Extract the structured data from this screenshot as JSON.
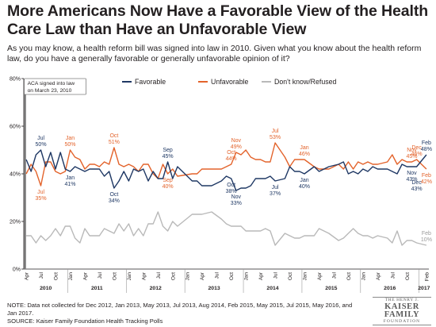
{
  "title": "More Americans Now Have a Favorable View of the Health Care Law than Have an Unfavorable View",
  "subtitle": "As you may know, a health reform bill was signed into law in 2010. Given what you know about the health reform law, do you have a generally favorable or generally unfavorable opinion of it?",
  "note": "NOTE: Data not collected for Dec 2012, Jan 2013, May 2013, Jul 2013, Aug 2014, Feb 2015, May 2015, Jul 2015, May 2016, and Jan 2017.",
  "source": "SOURCE: Kaiser Family Foundation Health Tracking Polls",
  "logo": {
    "line1": "THE HENRY J.",
    "line2a": "KAISER",
    "line2b": "FAMILY",
    "line3": "FOUNDATION"
  },
  "colors": {
    "favorable": "#1f3864",
    "unfavorable": "#e3632b",
    "dontknow": "#b9b9b9",
    "axis": "#231f20"
  },
  "chart_data": {
    "type": "line",
    "ylim": [
      0,
      80
    ],
    "yticks": [
      "0%",
      "20%",
      "40%",
      "60%",
      "80%"
    ],
    "start": "2010-04",
    "end": "2017-02",
    "months_visible_with_labels": [
      "Apr",
      "Jul",
      "Oct",
      "Jan",
      "Apr",
      "Jul",
      "Oct",
      "Jan",
      "Apr",
      "Jul",
      "Oct",
      "Jan",
      "Apr",
      "Jul",
      "Oct",
      "Jan",
      "Apr",
      "Jul",
      "Oct",
      "Jan",
      "Apr",
      "Jul",
      "Oct",
      "Jan",
      "Apr",
      "Jul",
      "Oct",
      "Feb"
    ],
    "month_label_dates": [
      "2010-04",
      "2010-07",
      "2010-10",
      "2011-01",
      "2011-04",
      "2011-07",
      "2011-10",
      "2012-01",
      "2012-04",
      "2012-07",
      "2012-10",
      "2013-01",
      "2013-04",
      "2013-07",
      "2013-10",
      "2014-01",
      "2014-04",
      "2014-07",
      "2014-10",
      "2015-01",
      "2015-04",
      "2015-07",
      "2015-10",
      "2016-01",
      "2016-04",
      "2016-07",
      "2016-10",
      "2017-02"
    ],
    "years": [
      "2010",
      "2011",
      "2012",
      "2013",
      "2014",
      "2015",
      "2016",
      "2017"
    ],
    "annotation": {
      "text1": "ACA signed into law",
      "text2": "on March 23, 2010"
    },
    "legend": {
      "favorable": "Favorable",
      "unfavorable": "Unfavorable",
      "dontknow": "Don't know/Refused"
    },
    "series": [
      {
        "key": "favorable",
        "name": "Favorable",
        "points": [
          [
            "2010-04",
            46
          ],
          [
            "2010-05",
            41
          ],
          [
            "2010-06",
            48
          ],
          [
            "2010-07",
            50
          ],
          [
            "2010-08",
            43
          ],
          [
            "2010-09",
            49
          ],
          [
            "2010-10",
            42
          ],
          [
            "2010-11",
            49
          ],
          [
            "2010-12",
            42
          ],
          [
            "2011-01",
            41
          ],
          [
            "2011-02",
            43
          ],
          [
            "2011-03",
            42
          ],
          [
            "2011-04",
            41
          ],
          [
            "2011-05",
            42
          ],
          [
            "2011-06",
            42
          ],
          [
            "2011-07",
            42
          ],
          [
            "2011-08",
            39
          ],
          [
            "2011-09",
            41
          ],
          [
            "2011-10",
            34
          ],
          [
            "2011-11",
            37
          ],
          [
            "2011-12",
            41
          ],
          [
            "2012-01",
            37
          ],
          [
            "2012-02",
            42
          ],
          [
            "2012-03",
            41
          ],
          [
            "2012-04",
            42
          ],
          [
            "2012-05",
            37
          ],
          [
            "2012-06",
            41
          ],
          [
            "2012-07",
            38
          ],
          [
            "2012-08",
            38
          ],
          [
            "2012-09",
            45
          ],
          [
            "2012-10",
            38
          ],
          [
            "2012-11",
            43
          ],
          [
            "2013-02",
            37
          ],
          [
            "2013-03",
            37
          ],
          [
            "2013-04",
            35
          ],
          [
            "2013-06",
            35
          ],
          [
            "2013-08",
            37
          ],
          [
            "2013-09",
            39
          ],
          [
            "2013-10",
            38
          ],
          [
            "2013-11",
            33
          ],
          [
            "2013-12",
            34
          ],
          [
            "2014-01",
            34
          ],
          [
            "2014-02",
            35
          ],
          [
            "2014-03",
            38
          ],
          [
            "2014-04",
            38
          ],
          [
            "2014-05",
            38
          ],
          [
            "2014-06",
            39
          ],
          [
            "2014-07",
            37
          ],
          [
            "2014-09",
            38
          ],
          [
            "2014-10",
            43
          ],
          [
            "2014-11",
            41
          ],
          [
            "2014-12",
            41
          ],
          [
            "2015-01",
            40
          ],
          [
            "2015-03",
            43
          ],
          [
            "2015-04",
            41
          ],
          [
            "2015-06",
            43
          ],
          [
            "2015-08",
            44
          ],
          [
            "2015-09",
            45
          ],
          [
            "2015-10",
            40
          ],
          [
            "2015-11",
            41
          ],
          [
            "2015-12",
            40
          ],
          [
            "2016-01",
            42
          ],
          [
            "2016-02",
            41
          ],
          [
            "2016-03",
            43
          ],
          [
            "2016-04",
            42
          ],
          [
            "2016-06",
            42
          ],
          [
            "2016-07",
            41
          ],
          [
            "2016-08",
            40
          ],
          [
            "2016-09",
            44
          ],
          [
            "2016-10",
            43
          ],
          [
            "2016-11",
            43
          ],
          [
            "2016-12",
            43
          ],
          [
            "2017-02",
            48
          ]
        ],
        "labels": [
          {
            "date": "2010-07",
            "text1": "Jul",
            "text2": "50%",
            "pos": "above"
          },
          {
            "date": "2011-01",
            "text1": "Jan",
            "text2": "41%",
            "pos": "below"
          },
          {
            "date": "2011-10",
            "text1": "Oct",
            "text2": "34%",
            "pos": "below"
          },
          {
            "date": "2012-09",
            "text1": "Sep",
            "text2": "45%",
            "pos": "above"
          },
          {
            "date": "2013-10",
            "text1": "Oct",
            "text2": "38%",
            "pos": "below"
          },
          {
            "date": "2013-11",
            "text1": "Nov",
            "text2": "33%",
            "pos": "below"
          },
          {
            "date": "2014-07",
            "text1": "Jul",
            "text2": "37%",
            "pos": "below"
          },
          {
            "date": "2015-01",
            "text1": "Jan",
            "text2": "40%",
            "pos": "below"
          },
          {
            "date": "2016-11",
            "text1": "Nov",
            "text2": "43%",
            "pos": "below"
          },
          {
            "date": "2016-12",
            "text1": "Dec",
            "text2": "43%",
            "pos": "below2"
          },
          {
            "date": "2017-02",
            "text1": "Feb",
            "text2": "48%",
            "pos": "above"
          }
        ]
      },
      {
        "key": "unfavorable",
        "name": "Unfavorable",
        "points": [
          [
            "2010-04",
            40
          ],
          [
            "2010-05",
            44
          ],
          [
            "2010-06",
            41
          ],
          [
            "2010-07",
            35
          ],
          [
            "2010-08",
            45
          ],
          [
            "2010-09",
            45
          ],
          [
            "2010-10",
            41
          ],
          [
            "2010-11",
            40
          ],
          [
            "2010-12",
            41
          ],
          [
            "2011-01",
            50
          ],
          [
            "2011-02",
            47
          ],
          [
            "2011-03",
            46
          ],
          [
            "2011-04",
            42
          ],
          [
            "2011-05",
            44
          ],
          [
            "2011-06",
            44
          ],
          [
            "2011-07",
            43
          ],
          [
            "2011-08",
            45
          ],
          [
            "2011-09",
            44
          ],
          [
            "2011-10",
            51
          ],
          [
            "2011-11",
            44
          ],
          [
            "2011-12",
            43
          ],
          [
            "2012-01",
            44
          ],
          [
            "2012-02",
            43
          ],
          [
            "2012-03",
            41
          ],
          [
            "2012-04",
            44
          ],
          [
            "2012-05",
            44
          ],
          [
            "2012-06",
            40
          ],
          [
            "2012-07",
            38
          ],
          [
            "2012-08",
            44
          ],
          [
            "2012-09",
            40
          ],
          [
            "2012-10",
            42
          ],
          [
            "2012-11",
            39
          ],
          [
            "2013-02",
            40
          ],
          [
            "2013-03",
            40
          ],
          [
            "2013-04",
            42
          ],
          [
            "2013-06",
            42
          ],
          [
            "2013-08",
            42
          ],
          [
            "2013-09",
            43
          ],
          [
            "2013-10",
            44
          ],
          [
            "2013-11",
            49
          ],
          [
            "2013-12",
            48
          ],
          [
            "2014-01",
            50
          ],
          [
            "2014-02",
            47
          ],
          [
            "2014-03",
            46
          ],
          [
            "2014-04",
            46
          ],
          [
            "2014-05",
            45
          ],
          [
            "2014-06",
            45
          ],
          [
            "2014-07",
            53
          ],
          [
            "2014-09",
            47
          ],
          [
            "2014-10",
            43
          ],
          [
            "2014-11",
            46
          ],
          [
            "2014-12",
            46
          ],
          [
            "2015-01",
            46
          ],
          [
            "2015-03",
            43
          ],
          [
            "2015-04",
            42
          ],
          [
            "2015-06",
            42
          ],
          [
            "2015-08",
            44
          ],
          [
            "2015-09",
            42
          ],
          [
            "2015-10",
            45
          ],
          [
            "2015-11",
            42
          ],
          [
            "2015-12",
            45
          ],
          [
            "2016-01",
            44
          ],
          [
            "2016-02",
            45
          ],
          [
            "2016-03",
            44
          ],
          [
            "2016-04",
            44
          ],
          [
            "2016-06",
            45
          ],
          [
            "2016-07",
            48
          ],
          [
            "2016-08",
            44
          ],
          [
            "2016-09",
            46
          ],
          [
            "2016-10",
            45
          ],
          [
            "2016-11",
            45
          ],
          [
            "2016-12",
            46
          ],
          [
            "2017-02",
            42
          ]
        ],
        "labels": [
          {
            "date": "2010-07",
            "text1": "Jul",
            "text2": "35%",
            "pos": "below"
          },
          {
            "date": "2011-01",
            "text1": "Jan",
            "text2": "50%",
            "pos": "above"
          },
          {
            "date": "2011-10",
            "text1": "Oct",
            "text2": "51%",
            "pos": "above"
          },
          {
            "date": "2012-09",
            "text1": "Sep",
            "text2": "40%",
            "pos": "below"
          },
          {
            "date": "2013-10",
            "text1": "Oct",
            "text2": "44%",
            "pos": "above"
          },
          {
            "date": "2013-11",
            "text1": "Nov",
            "text2": "49%",
            "pos": "above"
          },
          {
            "date": "2014-07",
            "text1": "Jul",
            "text2": "53%",
            "pos": "above"
          },
          {
            "date": "2015-01",
            "text1": "Jan",
            "text2": "46%",
            "pos": "above"
          },
          {
            "date": "2016-11",
            "text1": "Nov",
            "text2": "45%",
            "pos": "above"
          },
          {
            "date": "2016-12",
            "text1": "Dec",
            "text2": "46%",
            "pos": "above"
          },
          {
            "date": "2017-02",
            "text1": "Feb",
            "text2": "42%",
            "pos": "below"
          }
        ]
      },
      {
        "key": "dontknow",
        "name": "Don't know/Refused",
        "points": [
          [
            "2010-04",
            14
          ],
          [
            "2010-05",
            14
          ],
          [
            "2010-06",
            11
          ],
          [
            "2010-07",
            14
          ],
          [
            "2010-08",
            12
          ],
          [
            "2010-09",
            14
          ],
          [
            "2010-10",
            17
          ],
          [
            "2010-11",
            14
          ],
          [
            "2010-12",
            18
          ],
          [
            "2011-01",
            18
          ],
          [
            "2011-02",
            13
          ],
          [
            "2011-03",
            11
          ],
          [
            "2011-04",
            17
          ],
          [
            "2011-05",
            14
          ],
          [
            "2011-06",
            14
          ],
          [
            "2011-07",
            14
          ],
          [
            "2011-08",
            17
          ],
          [
            "2011-09",
            16
          ],
          [
            "2011-10",
            15
          ],
          [
            "2011-11",
            19
          ],
          [
            "2011-12",
            16
          ],
          [
            "2012-01",
            19
          ],
          [
            "2012-02",
            14
          ],
          [
            "2012-03",
            17
          ],
          [
            "2012-04",
            14
          ],
          [
            "2012-05",
            19
          ],
          [
            "2012-06",
            19
          ],
          [
            "2012-07",
            24
          ],
          [
            "2012-08",
            18
          ],
          [
            "2012-09",
            16
          ],
          [
            "2012-10",
            20
          ],
          [
            "2012-11",
            18
          ],
          [
            "2013-02",
            23
          ],
          [
            "2013-03",
            23
          ],
          [
            "2013-04",
            23
          ],
          [
            "2013-06",
            24
          ],
          [
            "2013-08",
            21
          ],
          [
            "2013-09",
            19
          ],
          [
            "2013-10",
            18
          ],
          [
            "2013-11",
            18
          ],
          [
            "2013-12",
            18
          ],
          [
            "2014-01",
            16
          ],
          [
            "2014-02",
            16
          ],
          [
            "2014-03",
            16
          ],
          [
            "2014-04",
            16
          ],
          [
            "2014-05",
            17
          ],
          [
            "2014-06",
            16
          ],
          [
            "2014-07",
            10
          ],
          [
            "2014-09",
            15
          ],
          [
            "2014-10",
            14
          ],
          [
            "2014-11",
            13
          ],
          [
            "2014-12",
            13
          ],
          [
            "2015-01",
            14
          ],
          [
            "2015-03",
            14
          ],
          [
            "2015-04",
            17
          ],
          [
            "2015-06",
            15
          ],
          [
            "2015-08",
            12
          ],
          [
            "2015-09",
            13
          ],
          [
            "2015-10",
            15
          ],
          [
            "2015-11",
            17
          ],
          [
            "2015-12",
            15
          ],
          [
            "2016-01",
            14
          ],
          [
            "2016-02",
            14
          ],
          [
            "2016-03",
            13
          ],
          [
            "2016-04",
            14
          ],
          [
            "2016-06",
            13
          ],
          [
            "2016-07",
            11
          ],
          [
            "2016-08",
            16
          ],
          [
            "2016-09",
            10
          ],
          [
            "2016-10",
            12
          ],
          [
            "2016-11",
            12
          ],
          [
            "2016-12",
            11
          ],
          [
            "2017-02",
            10
          ]
        ],
        "labels": [
          {
            "date": "2017-02",
            "text1": "Feb",
            "text2": "10%",
            "pos": "above"
          }
        ]
      }
    ]
  }
}
